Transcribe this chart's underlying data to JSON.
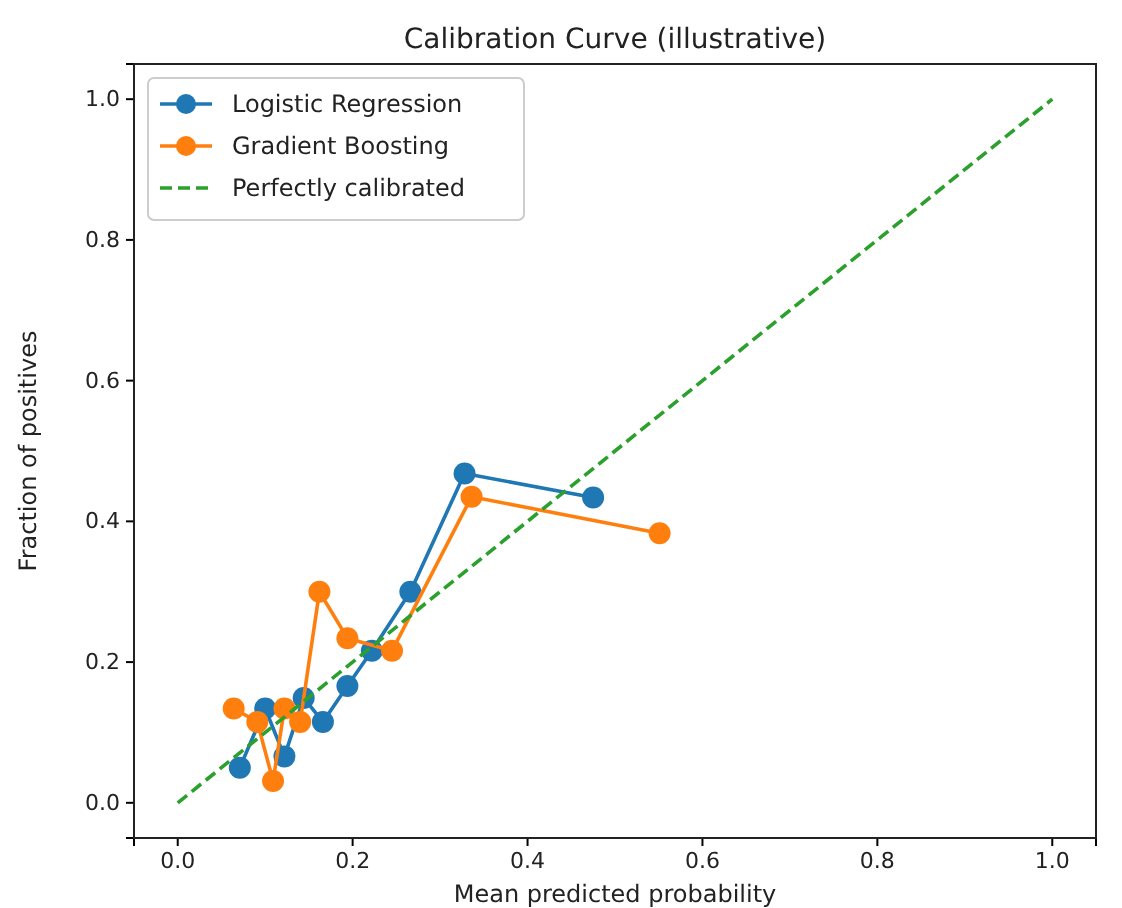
{
  "chart_data": {
    "type": "line",
    "title": "Calibration Curve (illustrative)",
    "xlabel": "Mean predicted probability",
    "ylabel": "Fraction of positives",
    "xlim": [
      -0.05,
      1.05
    ],
    "ylim": [
      -0.05,
      1.05
    ],
    "xticks": [
      {
        "value": 0,
        "label": "0.0"
      },
      {
        "value": 0.2,
        "label": "0.2"
      },
      {
        "value": 0.4,
        "label": "0.4"
      },
      {
        "value": 0.6,
        "label": "0.6"
      },
      {
        "value": 0.8,
        "label": "0.8"
      },
      {
        "value": 1,
        "label": "1.0"
      }
    ],
    "yticks": [
      {
        "value": 0,
        "label": "0.0"
      },
      {
        "value": 0.2,
        "label": "0.2"
      },
      {
        "value": 0.4,
        "label": "0.4"
      },
      {
        "value": 0.6,
        "label": "0.6"
      },
      {
        "value": 0.8,
        "label": "0.8"
      },
      {
        "value": 1,
        "label": "1.0"
      }
    ],
    "legend": "top left",
    "grid": false,
    "series": [
      {
        "name": "Logistic Regression",
        "color": "#1f77b4",
        "marker": "circle",
        "line_style": "solid",
        "x": [
          0.071,
          0.1,
          0.122,
          0.144,
          0.166,
          0.194,
          0.222,
          0.266,
          0.328,
          0.475
        ],
        "values": [
          0.05,
          0.134,
          0.066,
          0.149,
          0.115,
          0.166,
          0.216,
          0.3,
          0.468,
          0.434
        ]
      },
      {
        "name": "Gradient Boosting",
        "color": "#ff7f0e",
        "marker": "circle",
        "line_style": "solid",
        "x": [
          0.064,
          0.091,
          0.109,
          0.122,
          0.14,
          0.162,
          0.194,
          0.245,
          0.336,
          0.551
        ],
        "values": [
          0.134,
          0.115,
          0.031,
          0.134,
          0.115,
          0.3,
          0.234,
          0.216,
          0.435,
          0.383
        ]
      },
      {
        "name": "Perfectly calibrated",
        "color": "#2ca02c",
        "marker": "none",
        "line_style": "dashed",
        "x": [
          0,
          1
        ],
        "values": [
          0,
          1
        ]
      }
    ]
  }
}
